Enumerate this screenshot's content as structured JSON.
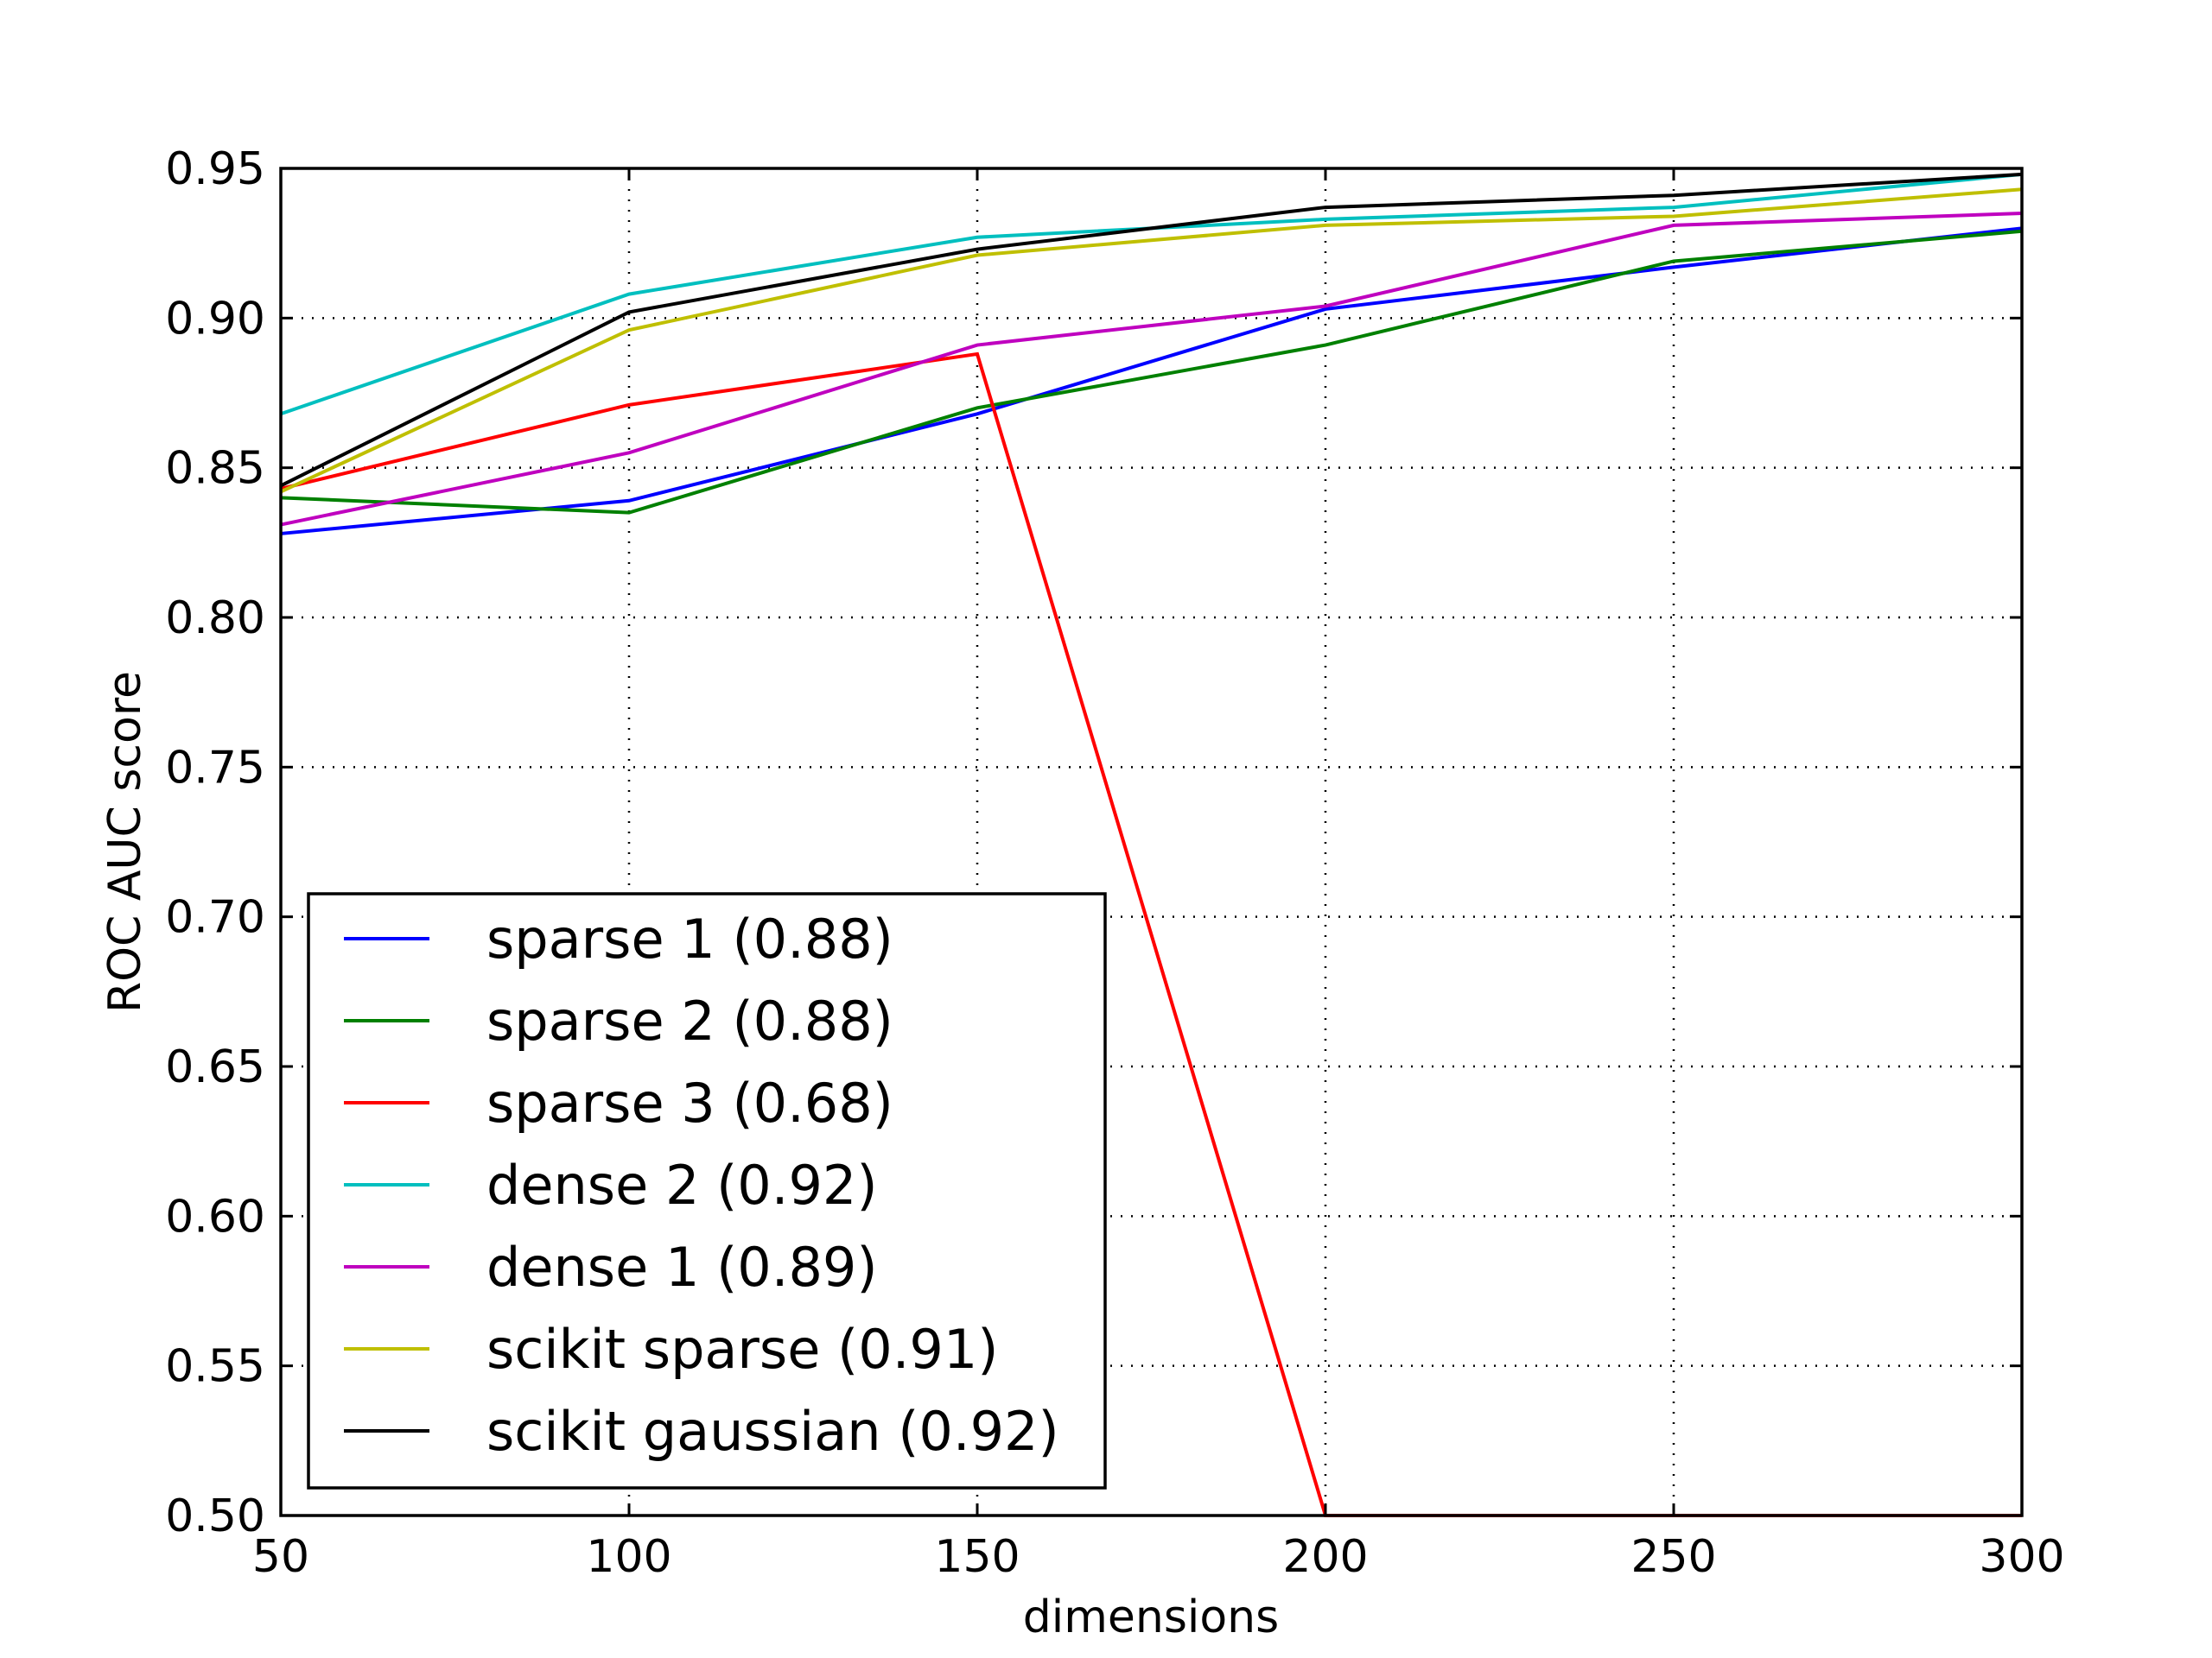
{
  "chart_data": {
    "type": "line",
    "xlabel": "dimensions",
    "ylabel": "ROC AUC score",
    "xlim": [
      50,
      300
    ],
    "ylim": [
      0.5,
      0.95
    ],
    "grid": true,
    "legend_position": "lower-left",
    "x": [
      50,
      100,
      150,
      200,
      250,
      300
    ],
    "x_tick_labels": [
      "50",
      "100",
      "150",
      "200",
      "250",
      "300"
    ],
    "y_ticks": [
      0.5,
      0.55,
      0.6,
      0.65,
      0.7,
      0.75,
      0.8,
      0.85,
      0.9,
      0.95
    ],
    "y_tick_labels": [
      "0.50",
      "0.55",
      "0.60",
      "0.65",
      "0.70",
      "0.75",
      "0.80",
      "0.85",
      "0.90",
      "0.95"
    ],
    "series": [
      {
        "name": "sparse 1 (0.88)",
        "color": "#0000ff",
        "values": [
          0.828,
          0.839,
          0.868,
          0.903,
          0.917,
          0.93
        ]
      },
      {
        "name": "sparse 2 (0.88)",
        "color": "#008000",
        "values": [
          0.84,
          0.835,
          0.87,
          0.891,
          0.919,
          0.929
        ]
      },
      {
        "name": "sparse 3 (0.68)",
        "color": "#ff0000",
        "values": [
          0.843,
          0.871,
          0.888,
          0.5,
          0.5,
          0.5
        ]
      },
      {
        "name": "dense 2 (0.92)",
        "color": "#00bfbf",
        "values": [
          0.868,
          0.908,
          0.927,
          0.933,
          0.937,
          0.948
        ]
      },
      {
        "name": "dense 1 (0.89)",
        "color": "#bf00bf",
        "values": [
          0.831,
          0.855,
          0.891,
          0.904,
          0.931,
          0.935
        ]
      },
      {
        "name": "scikit sparse (0.91)",
        "color": "#bfbf00",
        "values": [
          0.842,
          0.896,
          0.921,
          0.931,
          0.934,
          0.943
        ]
      },
      {
        "name": "scikit gaussian (0.92)",
        "color": "#000000",
        "values": [
          0.844,
          0.902,
          0.923,
          0.937,
          0.941,
          0.948
        ]
      }
    ]
  }
}
